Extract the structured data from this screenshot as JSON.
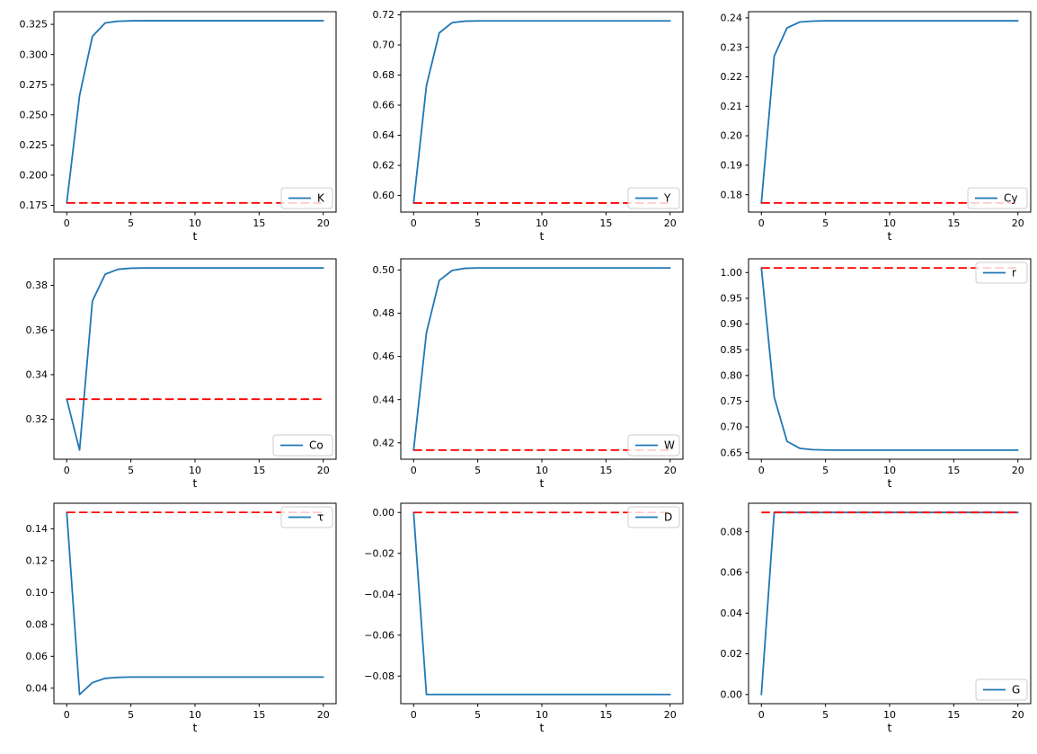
{
  "figure": {
    "background": "#ffffff"
  },
  "colors": {
    "series_line": "#1f77b4",
    "steady_state_line": "#ff0000",
    "frame": "#000000",
    "tick_text": "#000000",
    "legend_border": "#cccccc",
    "legend_background": "rgba(255,255,255,0.8)"
  },
  "chart_data": [
    {
      "type": "line",
      "name": "K",
      "legend_label": "K",
      "legend_loc": "lower right",
      "xlabel": "t",
      "x": [
        0,
        1,
        2,
        3,
        4,
        5,
        6,
        7,
        8,
        9,
        10,
        11,
        12,
        13,
        14,
        15,
        16,
        17,
        18,
        19,
        20
      ],
      "values": [
        0.177,
        0.266,
        0.315,
        0.3262,
        0.3276,
        0.3279,
        0.328,
        0.328,
        0.328,
        0.328,
        0.328,
        0.328,
        0.328,
        0.328,
        0.328,
        0.328,
        0.328,
        0.328,
        0.328,
        0.328,
        0.328
      ],
      "steady_state": 0.177,
      "xlim": [
        -1,
        21
      ],
      "ylim": [
        0.1694,
        0.3355
      ],
      "xticks": [
        0,
        5,
        10,
        15,
        20
      ],
      "yticks": [
        0.175,
        0.2,
        0.225,
        0.25,
        0.275,
        0.3,
        0.325
      ],
      "ytick_decimals": 3
    },
    {
      "type": "line",
      "name": "Y",
      "legend_label": "Y",
      "legend_loc": "lower right",
      "xlabel": "t",
      "x": [
        0,
        1,
        2,
        3,
        4,
        5,
        6,
        7,
        8,
        9,
        10,
        11,
        12,
        13,
        14,
        15,
        16,
        17,
        18,
        19,
        20
      ],
      "values": [
        0.595,
        0.673,
        0.708,
        0.7148,
        0.7158,
        0.716,
        0.716,
        0.716,
        0.716,
        0.716,
        0.716,
        0.716,
        0.716,
        0.716,
        0.716,
        0.716,
        0.716,
        0.716,
        0.716,
        0.716,
        0.716
      ],
      "steady_state": 0.595,
      "xlim": [
        -1,
        21
      ],
      "ylim": [
        0.589,
        0.7221
      ],
      "xticks": [
        0,
        5,
        10,
        15,
        20
      ],
      "yticks": [
        0.6,
        0.62,
        0.64,
        0.66,
        0.68,
        0.7,
        0.72
      ],
      "ytick_decimals": 2
    },
    {
      "type": "line",
      "name": "Cy",
      "legend_label": "Cy",
      "legend_loc": "lower right",
      "xlabel": "t",
      "x": [
        0,
        1,
        2,
        3,
        4,
        5,
        6,
        7,
        8,
        9,
        10,
        11,
        12,
        13,
        14,
        15,
        16,
        17,
        18,
        19,
        20
      ],
      "values": [
        0.1772,
        0.227,
        0.2366,
        0.2386,
        0.2389,
        0.239,
        0.239,
        0.239,
        0.239,
        0.239,
        0.239,
        0.239,
        0.239,
        0.239,
        0.239,
        0.239,
        0.239,
        0.239,
        0.239,
        0.239,
        0.239
      ],
      "steady_state": 0.1772,
      "xlim": [
        -1,
        21
      ],
      "ylim": [
        0.1741,
        0.2421
      ],
      "xticks": [
        0,
        5,
        10,
        15,
        20
      ],
      "yticks": [
        0.18,
        0.19,
        0.2,
        0.21,
        0.22,
        0.23,
        0.24
      ],
      "ytick_decimals": 2
    },
    {
      "type": "line",
      "name": "Co",
      "legend_label": "Co",
      "legend_loc": "lower right",
      "xlabel": "t",
      "x": [
        0,
        1,
        2,
        3,
        4,
        5,
        6,
        7,
        8,
        9,
        10,
        11,
        12,
        13,
        14,
        15,
        16,
        17,
        18,
        19,
        20
      ],
      "values": [
        0.329,
        0.3062,
        0.373,
        0.385,
        0.3872,
        0.3877,
        0.3878,
        0.3878,
        0.3878,
        0.3878,
        0.3878,
        0.3878,
        0.3878,
        0.3878,
        0.3878,
        0.3878,
        0.3878,
        0.3878,
        0.3878,
        0.3878,
        0.3878
      ],
      "steady_state": 0.329,
      "xlim": [
        -1,
        21
      ],
      "ylim": [
        0.3021,
        0.3919
      ],
      "xticks": [
        0,
        5,
        10,
        15,
        20
      ],
      "yticks": [
        0.32,
        0.34,
        0.36,
        0.38
      ],
      "ytick_decimals": 2
    },
    {
      "type": "line",
      "name": "W",
      "legend_label": "W",
      "legend_loc": "lower right",
      "xlabel": "t",
      "x": [
        0,
        1,
        2,
        3,
        4,
        5,
        6,
        7,
        8,
        9,
        10,
        11,
        12,
        13,
        14,
        15,
        16,
        17,
        18,
        19,
        20
      ],
      "values": [
        0.4166,
        0.471,
        0.4952,
        0.4998,
        0.5008,
        0.501,
        0.501,
        0.501,
        0.501,
        0.501,
        0.501,
        0.501,
        0.501,
        0.501,
        0.501,
        0.501,
        0.501,
        0.501,
        0.501,
        0.501,
        0.501
      ],
      "steady_state": 0.4166,
      "xlim": [
        -1,
        21
      ],
      "ylim": [
        0.4124,
        0.5052
      ],
      "xticks": [
        0,
        5,
        10,
        15,
        20
      ],
      "yticks": [
        0.42,
        0.44,
        0.46,
        0.48,
        0.5
      ],
      "ytick_decimals": 2
    },
    {
      "type": "line",
      "name": "r",
      "legend_label": "r",
      "legend_loc": "upper right",
      "xlabel": "t",
      "x": [
        0,
        1,
        2,
        3,
        4,
        5,
        6,
        7,
        8,
        9,
        10,
        11,
        12,
        13,
        14,
        15,
        16,
        17,
        18,
        19,
        20
      ],
      "values": [
        1.009,
        0.758,
        0.672,
        0.6585,
        0.6558,
        0.6552,
        0.655,
        0.655,
        0.655,
        0.655,
        0.655,
        0.655,
        0.655,
        0.655,
        0.655,
        0.655,
        0.655,
        0.655,
        0.655,
        0.655,
        0.655
      ],
      "steady_state": 1.009,
      "xlim": [
        -1,
        21
      ],
      "ylim": [
        0.6373,
        1.0267
      ],
      "xticks": [
        0,
        5,
        10,
        15,
        20
      ],
      "yticks": [
        0.65,
        0.7,
        0.75,
        0.8,
        0.85,
        0.9,
        0.95,
        1.0
      ],
      "ytick_decimals": 2
    },
    {
      "type": "line",
      "name": "tau",
      "legend_label": "τ",
      "legend_loc": "upper right",
      "xlabel": "t",
      "x": [
        0,
        1,
        2,
        3,
        4,
        5,
        6,
        7,
        8,
        9,
        10,
        11,
        12,
        13,
        14,
        15,
        16,
        17,
        18,
        19,
        20
      ],
      "values": [
        0.1503,
        0.036,
        0.0435,
        0.0462,
        0.0468,
        0.047,
        0.047,
        0.047,
        0.047,
        0.047,
        0.047,
        0.047,
        0.047,
        0.047,
        0.047,
        0.047,
        0.047,
        0.047,
        0.047,
        0.047,
        0.047
      ],
      "steady_state": 0.1503,
      "xlim": [
        -1,
        21
      ],
      "ylim": [
        0.0303,
        0.156
      ],
      "xticks": [
        0,
        5,
        10,
        15,
        20
      ],
      "yticks": [
        0.04,
        0.06,
        0.08,
        0.1,
        0.12,
        0.14
      ],
      "ytick_decimals": 2
    },
    {
      "type": "line",
      "name": "D",
      "legend_label": "D",
      "legend_loc": "upper right",
      "xlabel": "t",
      "x": [
        0,
        1,
        2,
        3,
        4,
        5,
        6,
        7,
        8,
        9,
        10,
        11,
        12,
        13,
        14,
        15,
        16,
        17,
        18,
        19,
        20
      ],
      "values": [
        0.0,
        -0.089,
        -0.089,
        -0.089,
        -0.089,
        -0.089,
        -0.089,
        -0.089,
        -0.089,
        -0.089,
        -0.089,
        -0.089,
        -0.089,
        -0.089,
        -0.089,
        -0.089,
        -0.089,
        -0.089,
        -0.089,
        -0.089,
        -0.089
      ],
      "steady_state": 0.0,
      "xlim": [
        -1,
        21
      ],
      "ylim": [
        -0.0935,
        0.0045
      ],
      "xticks": [
        0,
        5,
        10,
        15,
        20
      ],
      "yticks": [
        -0.08,
        -0.06,
        -0.04,
        -0.02,
        0.0
      ],
      "ytick_decimals": 2
    },
    {
      "type": "line",
      "name": "G",
      "legend_label": "G",
      "legend_loc": "lower right",
      "xlabel": "t",
      "x": [
        0,
        1,
        2,
        3,
        4,
        5,
        6,
        7,
        8,
        9,
        10,
        11,
        12,
        13,
        14,
        15,
        16,
        17,
        18,
        19,
        20
      ],
      "values": [
        0.0,
        0.0895,
        0.0895,
        0.0895,
        0.0895,
        0.0895,
        0.0895,
        0.0895,
        0.0895,
        0.0895,
        0.0895,
        0.0895,
        0.0895,
        0.0895,
        0.0895,
        0.0895,
        0.0895,
        0.0895,
        0.0895,
        0.0895,
        0.0895
      ],
      "steady_state": 0.0895,
      "xlim": [
        -1,
        21
      ],
      "ylim": [
        -0.0045,
        0.094
      ],
      "xticks": [
        0,
        5,
        10,
        15,
        20
      ],
      "yticks": [
        0.0,
        0.02,
        0.04,
        0.06,
        0.08
      ],
      "ytick_decimals": 2
    }
  ]
}
